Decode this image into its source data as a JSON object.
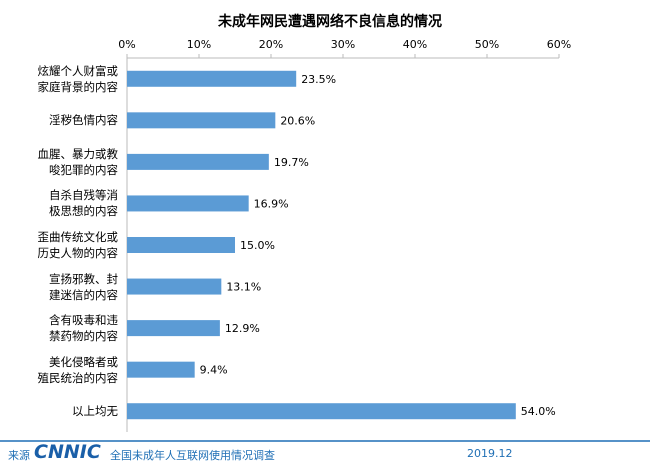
{
  "chart_data": {
    "type": "bar",
    "orientation": "horizontal",
    "title": "未成年网民遭遇网络不良信息的情况",
    "categories": [
      "炫耀个人财富或\n家庭背景的内容",
      "淫秽色情内容",
      "血腥、暴力或教\n唆犯罪的内容",
      "自杀自残等消\n极思想的内容",
      "歪曲传统文化或\n历史人物的内容",
      "宣扬邪教、封\n建迷信的内容",
      "含有吸毒和违\n禁药物的内容",
      "美化侵略者或\n殖民统治的内容",
      "以上均无"
    ],
    "values": [
      23.5,
      20.6,
      19.7,
      16.9,
      15.0,
      13.1,
      12.9,
      9.4,
      54.0
    ],
    "value_labels": [
      "23.5%",
      "20.6%",
      "19.7%",
      "16.9%",
      "15.0%",
      "13.1%",
      "12.9%",
      "9.4%",
      "54.0%"
    ],
    "color": "#5b9bd5",
    "xlim": [
      0,
      60
    ],
    "xticks": [
      {
        "value": 0,
        "label": "0%"
      },
      {
        "value": 10,
        "label": "10%"
      },
      {
        "value": 20,
        "label": "20%"
      },
      {
        "value": 30,
        "label": "30%"
      },
      {
        "value": 40,
        "label": "40%"
      },
      {
        "value": 50,
        "label": "50%"
      },
      {
        "value": 60,
        "label": "60%"
      }
    ],
    "grid": false
  },
  "footer": {
    "source": "来源",
    "logo": "CNNIC",
    "survey": "全国未成年人互联网使用情况调查",
    "date": "2019.12"
  }
}
